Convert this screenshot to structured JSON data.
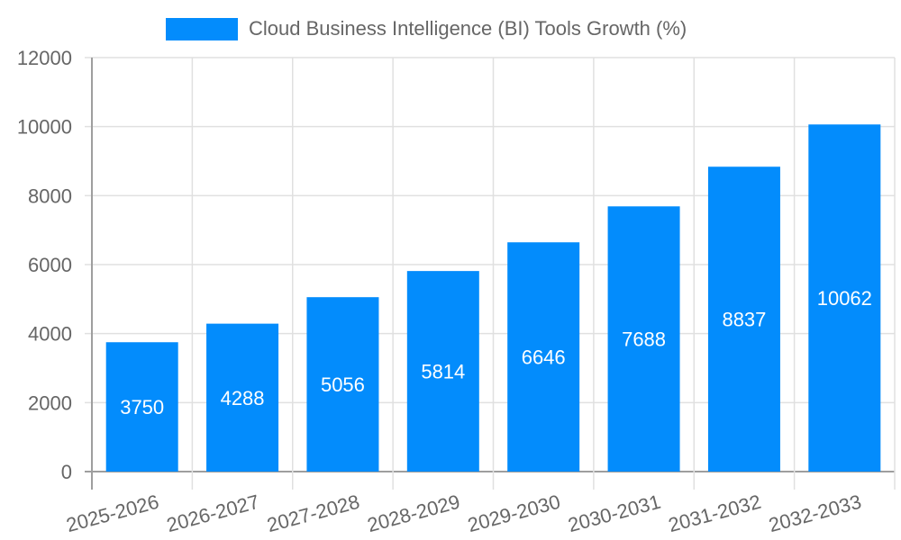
{
  "chart_data": {
    "type": "bar",
    "title": "",
    "legend": [
      {
        "label": "Cloud Business Intelligence (BI) Tools Growth (%)",
        "color": "#038cfc"
      }
    ],
    "legend_position": "top",
    "categories": [
      "2025-2026",
      "2026-2027",
      "2027-2028",
      "2028-2029",
      "2029-2030",
      "2030-2031",
      "2031-2032",
      "2032-2033"
    ],
    "series": [
      {
        "name": "Cloud Business Intelligence (BI) Tools Growth (%)",
        "values": [
          3750,
          4288,
          5056,
          5814,
          6646,
          7688,
          8837,
          10062
        ]
      }
    ],
    "xlabel": "",
    "ylabel": "",
    "ylim": [
      0,
      12000
    ],
    "yticks": [
      "0",
      "2000",
      "4000",
      "6000",
      "8000",
      "10000",
      "12000"
    ],
    "grid": true,
    "data_labels": true
  },
  "legend": {
    "label": "Cloud Business Intelligence (BI) Tools Growth (%)"
  }
}
